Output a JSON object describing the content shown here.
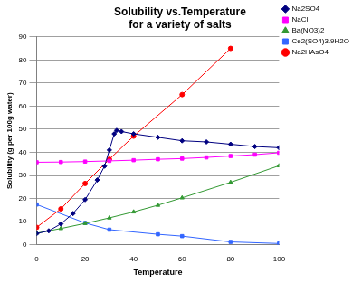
{
  "chart_data": {
    "type": "line",
    "title": [
      "Solubility vs.Temperature",
      "for a variety of salts"
    ],
    "x_label": "Temperature",
    "y_label": "Solubility (g per 100g water)",
    "xlim": [
      0,
      100
    ],
    "xticks": [
      0,
      20,
      40,
      60,
      80,
      100
    ],
    "ylim": [
      0,
      90
    ],
    "yticks": [
      0,
      10,
      20,
      30,
      40,
      50,
      60,
      70,
      80,
      90
    ],
    "grid": true,
    "legend": "right",
    "series": [
      {
        "name": "Na2SO4",
        "color": "#000080",
        "marker": "diamond",
        "x": [
          0,
          5,
          10,
          15,
          20,
          25,
          28,
          30,
          32,
          33,
          35,
          40,
          50,
          60,
          70,
          80,
          90,
          100
        ],
        "values": [
          4.8,
          6,
          9,
          13.5,
          19.5,
          28,
          34,
          41,
          48,
          49.5,
          49,
          48,
          46.5,
          45,
          44.5,
          43.5,
          42.5,
          42
        ]
      },
      {
        "name": "NaCl",
        "color": "#ff00ff",
        "marker": "square",
        "x": [
          0,
          10,
          20,
          30,
          40,
          50,
          60,
          70,
          80,
          90,
          100
        ],
        "values": [
          35.7,
          35.8,
          36,
          36.3,
          36.6,
          37,
          37.3,
          37.8,
          38.4,
          39,
          39.8
        ]
      },
      {
        "name": "Ba(NO3)2",
        "color": "#339933",
        "marker": "triangle",
        "x": [
          0,
          10,
          20,
          30,
          40,
          50,
          60,
          80,
          100
        ],
        "values": [
          5,
          7,
          9.2,
          11.6,
          14.2,
          17.1,
          20.3,
          27,
          34.2
        ]
      },
      {
        "name": "Ce2(SO4)3.9H2O",
        "color": "#3366ff",
        "marker": "square",
        "x": [
          0,
          20,
          30,
          50,
          60,
          80,
          100
        ],
        "values": [
          17.4,
          9.4,
          6.5,
          4.5,
          3.7,
          1.2,
          0.5
        ]
      },
      {
        "name": "Na2HAsO4",
        "color": "#ff0000",
        "marker": "circle",
        "x": [
          0,
          10,
          20,
          30,
          40,
          60,
          80
        ],
        "values": [
          7.5,
          15.5,
          26.5,
          37,
          47,
          65,
          85
        ]
      }
    ]
  }
}
